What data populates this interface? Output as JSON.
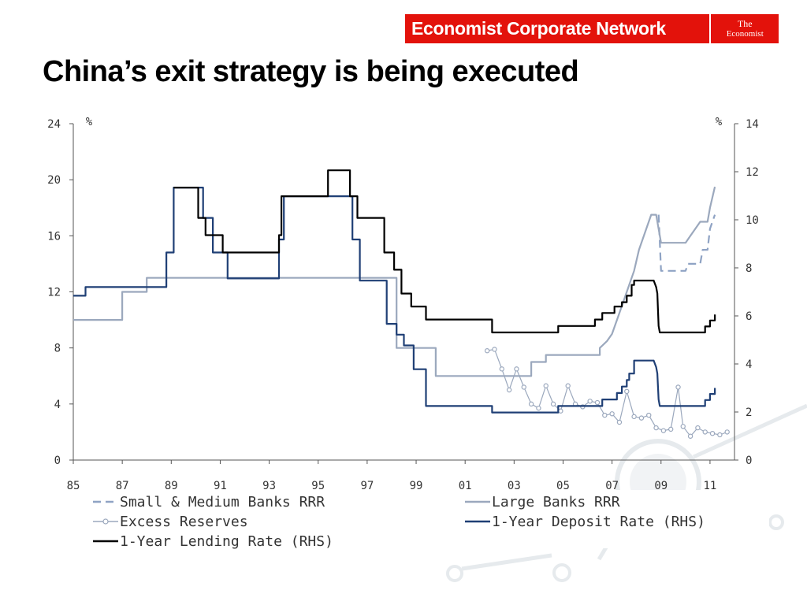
{
  "header": {
    "brand_name": "Economist Corporate Network",
    "logo_line1": "The",
    "logo_line2": "Economist",
    "brand_color": "#e3120b"
  },
  "slide": {
    "title": "China’s exit strategy is being executed"
  },
  "chart_data": {
    "type": "line",
    "title": "China’s exit strategy is being executed",
    "x_tick_labels": [
      "85",
      "87",
      "89",
      "91",
      "93",
      "95",
      "97",
      "99",
      "01",
      "03",
      "05",
      "07",
      "09",
      "11"
    ],
    "x_range": [
      1985,
      2012
    ],
    "left_axis": {
      "unit": "%",
      "range": [
        0,
        24
      ],
      "ticks": [
        "0",
        "4",
        "8",
        "12",
        "16",
        "20",
        "24"
      ]
    },
    "right_axis": {
      "unit": "%",
      "range": [
        0,
        14
      ],
      "ticks": [
        "0",
        "2",
        "4",
        "6",
        "8",
        "10",
        "12",
        "14"
      ]
    },
    "legend_placement": "bottom",
    "series": [
      {
        "name": "Small & Medium Banks RRR",
        "axis": "left",
        "color": "#8fa3c4",
        "style": "dashed",
        "points": [
          [
            2008.9,
            17.5
          ],
          [
            2009.0,
            13.5
          ],
          [
            2010.0,
            13.5
          ],
          [
            2010.1,
            14.0
          ],
          [
            2010.6,
            14.0
          ],
          [
            2010.7,
            15.0
          ],
          [
            2010.9,
            15.0
          ],
          [
            2011.0,
            16.5
          ],
          [
            2011.2,
            17.5
          ]
        ]
      },
      {
        "name": "Large Banks RRR",
        "axis": "left",
        "color": "#9ba8bd",
        "style": "solid",
        "points": [
          [
            1985.0,
            10.0
          ],
          [
            1987.0,
            10.0
          ],
          [
            1987.0,
            12.0
          ],
          [
            1988.0,
            12.0
          ],
          [
            1988.0,
            13.0
          ],
          [
            1998.2,
            13.0
          ],
          [
            1998.2,
            8.0
          ],
          [
            1999.8,
            8.0
          ],
          [
            1999.8,
            6.0
          ],
          [
            2003.7,
            6.0
          ],
          [
            2003.7,
            7.0
          ],
          [
            2004.3,
            7.0
          ],
          [
            2004.3,
            7.5
          ],
          [
            2006.5,
            7.5
          ],
          [
            2006.5,
            8.0
          ],
          [
            2006.8,
            8.5
          ],
          [
            2007.0,
            9.0
          ],
          [
            2007.3,
            10.5
          ],
          [
            2007.6,
            12.0
          ],
          [
            2007.9,
            13.5
          ],
          [
            2008.1,
            15.0
          ],
          [
            2008.4,
            16.5
          ],
          [
            2008.6,
            17.5
          ],
          [
            2008.8,
            17.5
          ],
          [
            2008.9,
            16.5
          ],
          [
            2009.0,
            15.5
          ],
          [
            2010.0,
            15.5
          ],
          [
            2010.2,
            16.0
          ],
          [
            2010.4,
            16.5
          ],
          [
            2010.6,
            17.0
          ],
          [
            2010.9,
            17.0
          ],
          [
            2011.0,
            18.0
          ],
          [
            2011.2,
            19.5
          ]
        ]
      },
      {
        "name": "Excess Reserves",
        "axis": "left",
        "color": "#9ba8bd",
        "style": "markers",
        "points": [
          [
            2001.9,
            7.8
          ],
          [
            2002.2,
            7.9
          ],
          [
            2002.5,
            6.5
          ],
          [
            2002.8,
            5.0
          ],
          [
            2003.1,
            6.5
          ],
          [
            2003.4,
            5.2
          ],
          [
            2003.7,
            4.0
          ],
          [
            2004.0,
            3.7
          ],
          [
            2004.3,
            5.3
          ],
          [
            2004.6,
            4.0
          ],
          [
            2004.9,
            3.5
          ],
          [
            2005.2,
            5.3
          ],
          [
            2005.5,
            4.0
          ],
          [
            2005.8,
            3.8
          ],
          [
            2006.1,
            4.2
          ],
          [
            2006.4,
            4.1
          ],
          [
            2006.7,
            3.2
          ],
          [
            2007.0,
            3.3
          ],
          [
            2007.3,
            2.7
          ],
          [
            2007.6,
            4.9
          ],
          [
            2007.9,
            3.1
          ],
          [
            2008.2,
            3.0
          ],
          [
            2008.5,
            3.2
          ],
          [
            2008.8,
            2.3
          ],
          [
            2009.1,
            2.1
          ],
          [
            2009.4,
            2.2
          ],
          [
            2009.7,
            5.2
          ],
          [
            2009.9,
            2.4
          ],
          [
            2010.2,
            1.7
          ],
          [
            2010.5,
            2.3
          ],
          [
            2010.8,
            2.0
          ],
          [
            2011.1,
            1.9
          ],
          [
            2011.4,
            1.8
          ],
          [
            2011.7,
            2.0
          ]
        ]
      },
      {
        "name": "1-Year Deposit Rate (RHS)",
        "axis": "right",
        "color": "#1f3f75",
        "style": "solid",
        "points": [
          [
            1985.0,
            6.84
          ],
          [
            1985.5,
            6.84
          ],
          [
            1985.5,
            7.2
          ],
          [
            1988.8,
            7.2
          ],
          [
            1988.8,
            8.64
          ],
          [
            1989.1,
            8.64
          ],
          [
            1989.1,
            11.34
          ],
          [
            1990.3,
            11.34
          ],
          [
            1990.3,
            10.08
          ],
          [
            1990.7,
            10.08
          ],
          [
            1990.7,
            8.64
          ],
          [
            1991.3,
            8.64
          ],
          [
            1991.3,
            7.56
          ],
          [
            1993.4,
            7.56
          ],
          [
            1993.4,
            9.18
          ],
          [
            1993.6,
            9.18
          ],
          [
            1993.6,
            10.98
          ],
          [
            1996.4,
            10.98
          ],
          [
            1996.4,
            9.18
          ],
          [
            1996.7,
            9.18
          ],
          [
            1996.7,
            7.47
          ],
          [
            1997.8,
            7.47
          ],
          [
            1997.8,
            5.67
          ],
          [
            1998.2,
            5.67
          ],
          [
            1998.2,
            5.22
          ],
          [
            1998.5,
            5.22
          ],
          [
            1998.5,
            4.77
          ],
          [
            1998.9,
            4.77
          ],
          [
            1998.9,
            3.78
          ],
          [
            1999.4,
            3.78
          ],
          [
            1999.4,
            2.25
          ],
          [
            2002.1,
            2.25
          ],
          [
            2002.1,
            1.98
          ],
          [
            2004.8,
            1.98
          ],
          [
            2004.8,
            2.25
          ],
          [
            2006.6,
            2.25
          ],
          [
            2006.6,
            2.52
          ],
          [
            2007.2,
            2.52
          ],
          [
            2007.2,
            2.79
          ],
          [
            2007.4,
            2.79
          ],
          [
            2007.4,
            3.06
          ],
          [
            2007.6,
            3.06
          ],
          [
            2007.6,
            3.33
          ],
          [
            2007.7,
            3.33
          ],
          [
            2007.7,
            3.6
          ],
          [
            2007.9,
            3.6
          ],
          [
            2007.9,
            4.14
          ],
          [
            2008.7,
            4.14
          ],
          [
            2008.8,
            3.87
          ],
          [
            2008.85,
            3.6
          ],
          [
            2008.9,
            2.52
          ],
          [
            2008.95,
            2.25
          ],
          [
            2010.8,
            2.25
          ],
          [
            2010.8,
            2.5
          ],
          [
            2011.0,
            2.5
          ],
          [
            2011.0,
            2.75
          ],
          [
            2011.2,
            2.75
          ],
          [
            2011.2,
            3.0
          ]
        ]
      },
      {
        "name": "1-Year Lending Rate (RHS)",
        "axis": "right",
        "color": "#000000",
        "style": "solid",
        "points": [
          [
            1989.1,
            11.34
          ],
          [
            1990.1,
            11.34
          ],
          [
            1990.1,
            10.08
          ],
          [
            1990.4,
            10.08
          ],
          [
            1990.4,
            9.36
          ],
          [
            1991.1,
            9.36
          ],
          [
            1991.1,
            8.64
          ],
          [
            1993.4,
            8.64
          ],
          [
            1993.4,
            9.36
          ],
          [
            1993.5,
            9.36
          ],
          [
            1993.5,
            10.98
          ],
          [
            1995.4,
            10.98
          ],
          [
            1995.4,
            12.06
          ],
          [
            1996.3,
            12.06
          ],
          [
            1996.3,
            10.98
          ],
          [
            1996.6,
            10.98
          ],
          [
            1996.6,
            10.08
          ],
          [
            1997.7,
            10.08
          ],
          [
            1997.7,
            8.64
          ],
          [
            1998.1,
            8.64
          ],
          [
            1998.1,
            7.92
          ],
          [
            1998.4,
            7.92
          ],
          [
            1998.4,
            6.93
          ],
          [
            1998.8,
            6.93
          ],
          [
            1998.8,
            6.39
          ],
          [
            1999.4,
            6.39
          ],
          [
            1999.4,
            5.85
          ],
          [
            2002.1,
            5.85
          ],
          [
            2002.1,
            5.31
          ],
          [
            2004.8,
            5.31
          ],
          [
            2004.8,
            5.58
          ],
          [
            2006.3,
            5.58
          ],
          [
            2006.3,
            5.85
          ],
          [
            2006.6,
            5.85
          ],
          [
            2006.6,
            6.12
          ],
          [
            2007.1,
            6.12
          ],
          [
            2007.1,
            6.39
          ],
          [
            2007.4,
            6.39
          ],
          [
            2007.4,
            6.57
          ],
          [
            2007.6,
            6.57
          ],
          [
            2007.6,
            6.84
          ],
          [
            2007.8,
            6.84
          ],
          [
            2007.8,
            7.29
          ],
          [
            2007.9,
            7.29
          ],
          [
            2007.9,
            7.47
          ],
          [
            2008.7,
            7.47
          ],
          [
            2008.8,
            7.2
          ],
          [
            2008.85,
            6.93
          ],
          [
            2008.9,
            5.58
          ],
          [
            2008.95,
            5.31
          ],
          [
            2010.8,
            5.31
          ],
          [
            2010.8,
            5.56
          ],
          [
            2011.0,
            5.56
          ],
          [
            2011.0,
            5.81
          ],
          [
            2011.2,
            5.81
          ],
          [
            2011.2,
            6.06
          ]
        ]
      }
    ]
  }
}
